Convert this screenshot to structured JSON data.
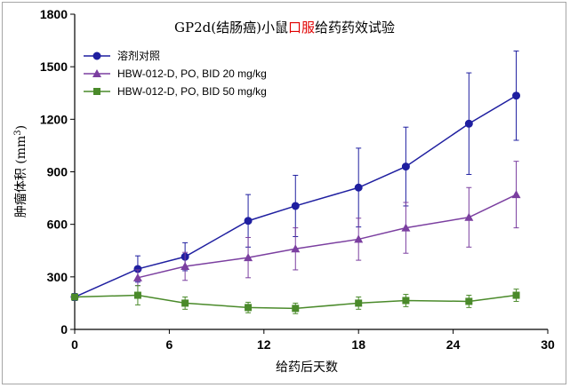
{
  "chart_data": {
    "type": "line",
    "title_parts": [
      {
        "text": "GP2d(结肠癌)小鼠",
        "color": "#000000"
      },
      {
        "text": "口服",
        "color": "#e00000"
      },
      {
        "text": "给药药效试验",
        "color": "#000000"
      }
    ],
    "xlabel": "给药后天数",
    "ylabel_main": "肿瘤体积 (mm",
    "ylabel_sup": "3",
    "ylabel_end": ")",
    "xlim": [
      0,
      30
    ],
    "ylim": [
      0,
      1800
    ],
    "xticks": [
      "0",
      "6",
      "12",
      "18",
      "24",
      "30"
    ],
    "yticks": [
      "0",
      "300",
      "600",
      "900",
      "1200",
      "1500",
      "1800"
    ],
    "grid": false,
    "legend_position": "top-left",
    "series": [
      {
        "name": "溶剂对照",
        "color": "#1f1fa0",
        "marker": "circle",
        "x": [
          0,
          4,
          7,
          11,
          14,
          18,
          21,
          25,
          28
        ],
        "y": [
          185,
          345,
          415,
          620,
          705,
          810,
          930,
          1175,
          1335
        ],
        "err": [
          20,
          75,
          80,
          150,
          175,
          225,
          225,
          290,
          255
        ]
      },
      {
        "name": "HBW-012-D, PO, BID 20 mg/kg",
        "color": "#7b3fa0",
        "marker": "triangle",
        "x": [
          4,
          7,
          11,
          14,
          18,
          21,
          25,
          28
        ],
        "y": [
          295,
          360,
          410,
          460,
          515,
          580,
          640,
          770
        ],
        "err": [
          45,
          80,
          115,
          120,
          120,
          145,
          170,
          190
        ]
      },
      {
        "name": "HBW-012-D, PO, BID 50 mg/kg",
        "color": "#4a8a2a",
        "marker": "square",
        "x": [
          0,
          4,
          7,
          11,
          14,
          18,
          21,
          25,
          28
        ],
        "y": [
          185,
          195,
          150,
          125,
          120,
          150,
          165,
          160,
          195
        ],
        "err": [
          15,
          55,
          35,
          30,
          30,
          35,
          35,
          35,
          35
        ]
      }
    ]
  }
}
